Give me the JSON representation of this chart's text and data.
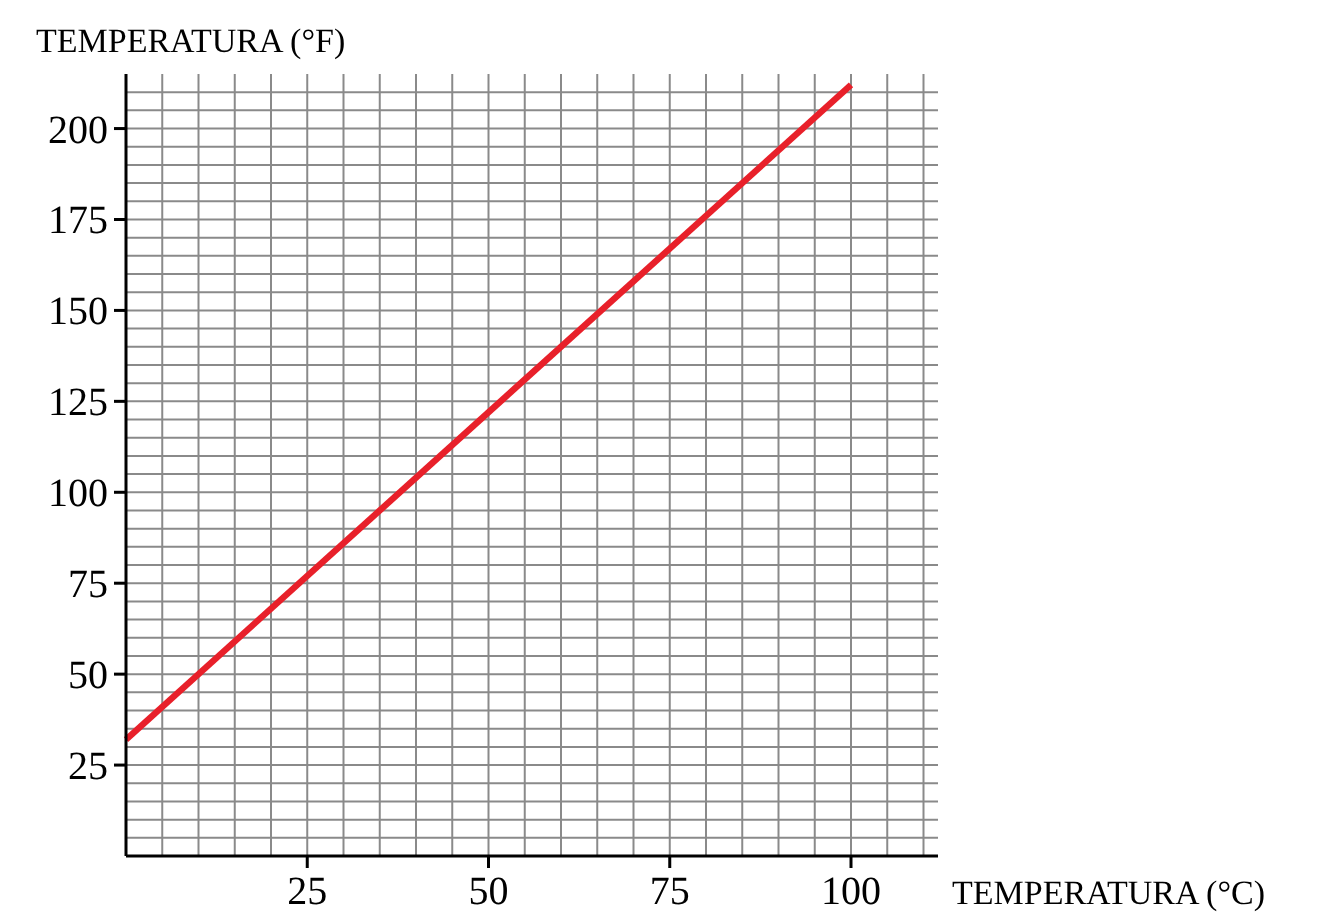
{
  "chart_data": {
    "type": "line",
    "xlabel": "TEMPERATURA (°C)",
    "ylabel": "TEMPERATURA (°F)",
    "x": [
      0,
      100
    ],
    "series": [
      {
        "color": "#e8202a",
        "values": [
          32,
          212
        ]
      }
    ],
    "xlim": [
      0,
      112
    ],
    "ylim": [
      0,
      215
    ],
    "xticks": [
      {
        "value": 5,
        "label": null
      },
      {
        "value": 10,
        "label": null
      },
      {
        "value": 15,
        "label": null
      },
      {
        "value": 20,
        "label": null
      },
      25,
      {
        "value": 30,
        "label": null
      },
      {
        "value": 35,
        "label": null
      },
      {
        "value": 40,
        "label": null
      },
      {
        "value": 45,
        "label": null
      },
      50,
      {
        "value": 55,
        "label": null
      },
      {
        "value": 60,
        "label": null
      },
      {
        "value": 65,
        "label": null
      },
      {
        "value": 70,
        "label": null
      },
      75,
      {
        "value": 80,
        "label": null
      },
      {
        "value": 85,
        "label": null
      },
      {
        "value": 90,
        "label": null
      },
      {
        "value": 95,
        "label": null
      },
      100,
      {
        "value": 105,
        "label": null
      },
      {
        "value": 110,
        "label": null
      }
    ],
    "yticks": [
      {
        "value": 5,
        "label": null
      },
      {
        "value": 10,
        "label": null
      },
      {
        "value": 15,
        "label": null
      },
      {
        "value": 20,
        "label": null
      },
      25,
      {
        "value": 30,
        "label": null
      },
      {
        "value": 35,
        "label": null
      },
      {
        "value": 40,
        "label": null
      },
      {
        "value": 45,
        "label": null
      },
      50,
      {
        "value": 55,
        "label": null
      },
      {
        "value": 60,
        "label": null
      },
      {
        "value": 65,
        "label": null
      },
      {
        "value": 70,
        "label": null
      },
      75,
      {
        "value": 80,
        "label": null
      },
      {
        "value": 85,
        "label": null
      },
      {
        "value": 90,
        "label": null
      },
      {
        "value": 95,
        "label": null
      },
      100,
      {
        "value": 105,
        "label": null
      },
      {
        "value": 110,
        "label": null
      },
      {
        "value": 115,
        "label": null
      },
      {
        "value": 120,
        "label": null
      },
      125,
      {
        "value": 130,
        "label": null
      },
      {
        "value": 135,
        "label": null
      },
      {
        "value": 140,
        "label": null
      },
      {
        "value": 145,
        "label": null
      },
      150,
      {
        "value": 155,
        "label": null
      },
      {
        "value": 160,
        "label": null
      },
      {
        "value": 165,
        "label": null
      },
      {
        "value": 170,
        "label": null
      },
      175,
      {
        "value": 180,
        "label": null
      },
      {
        "value": 185,
        "label": null
      },
      {
        "value": 190,
        "label": null
      },
      {
        "value": 195,
        "label": null
      },
      200,
      {
        "value": 205,
        "label": null
      },
      {
        "value": 210,
        "label": null
      }
    ],
    "grid": true,
    "marker": "none",
    "line_style": "solid"
  }
}
